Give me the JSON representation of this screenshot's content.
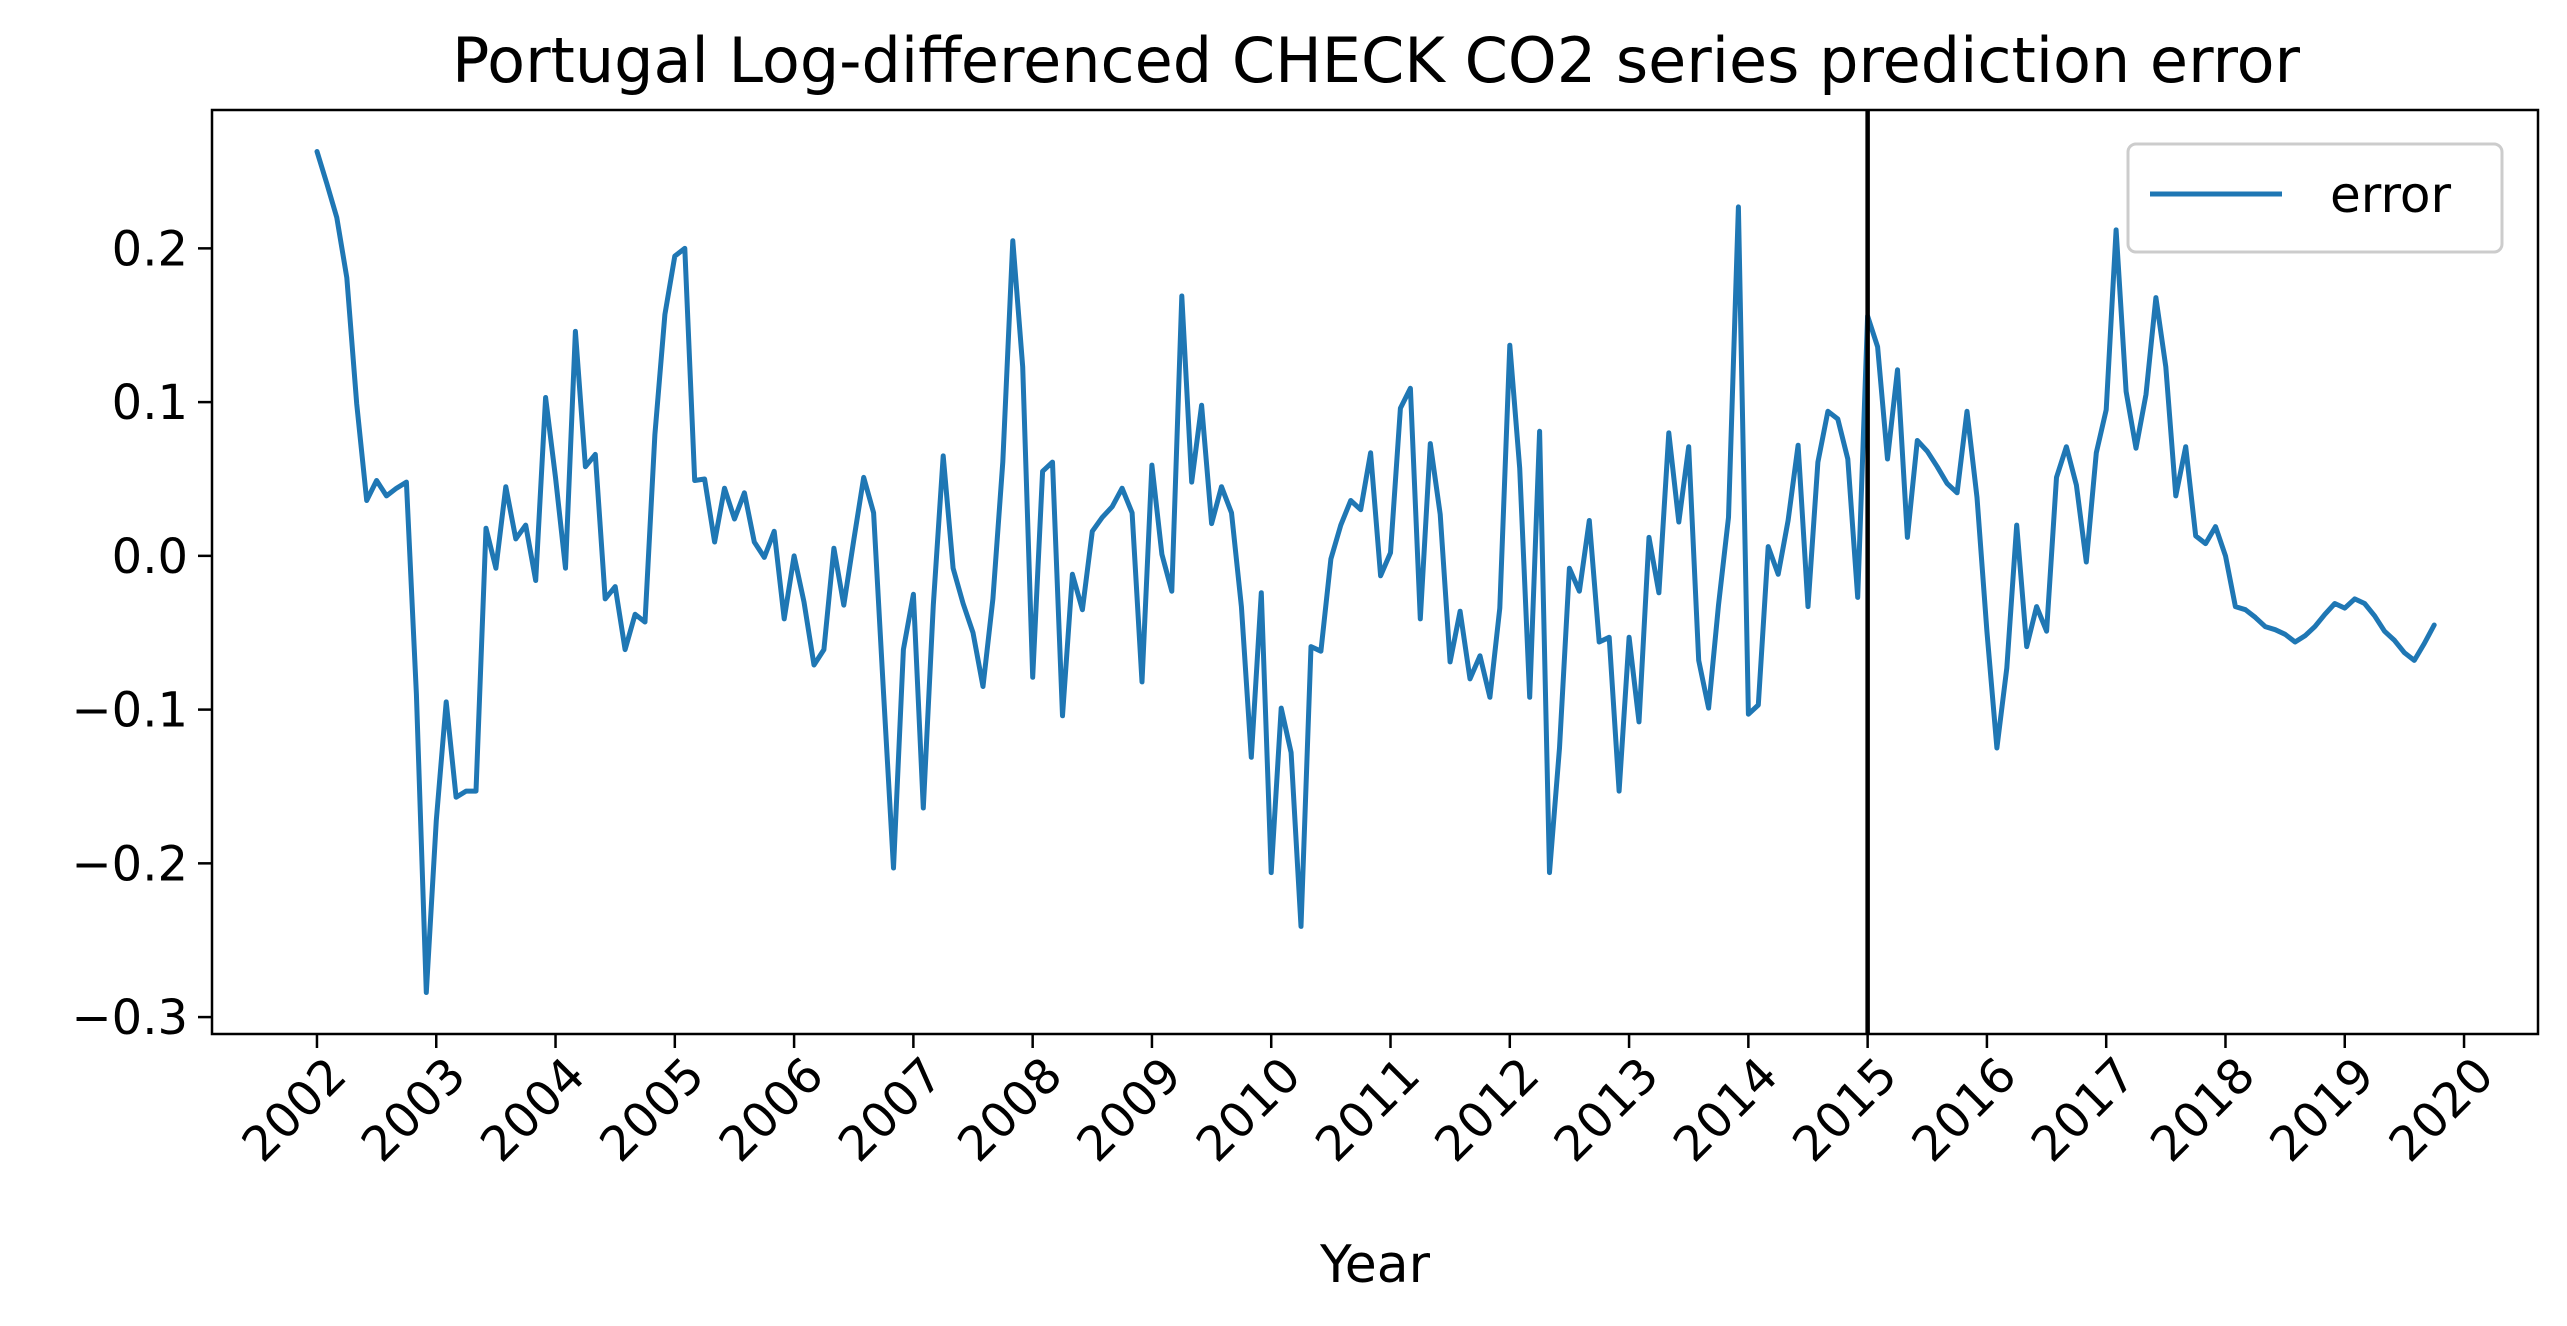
{
  "chart_data": {
    "type": "line",
    "title": "Portugal Log-differenced CHECK CO2 series prediction error",
    "xlabel": "Year",
    "ylabel": "",
    "x_ticks": [
      "2002",
      "2003",
      "2004",
      "2005",
      "2006",
      "2007",
      "2008",
      "2009",
      "2010",
      "2011",
      "2012",
      "2013",
      "2014",
      "2015",
      "2016",
      "2017",
      "2018",
      "2019",
      "2020"
    ],
    "y_ticks": [
      "0.2",
      "0.1",
      "0.0",
      "−0.1",
      "−0.2",
      "−0.3"
    ],
    "y_tick_values": [
      0.2,
      0.1,
      0.0,
      -0.1,
      -0.2,
      -0.3
    ],
    "xlim": [
      2001.12,
      2020.62
    ],
    "ylim": [
      -0.311,
      0.29
    ],
    "vline_x": 2015.0,
    "vline_color": "#000000",
    "grid": false,
    "legend_position": "top-right",
    "series": [
      {
        "name": "error",
        "color": "#1f77b4",
        "x_start": 2002.0,
        "x_step": 0.0833333,
        "values": [
          0.263,
          0.242,
          0.22,
          0.181,
          0.099,
          0.036,
          0.049,
          0.039,
          0.044,
          0.048,
          -0.09,
          -0.284,
          -0.172,
          -0.095,
          -0.157,
          -0.153,
          -0.153,
          0.018,
          -0.008,
          0.045,
          0.011,
          0.02,
          -0.016,
          0.103,
          0.051,
          -0.008,
          0.146,
          0.058,
          0.066,
          -0.028,
          -0.02,
          -0.061,
          -0.038,
          -0.043,
          0.079,
          0.157,
          0.195,
          0.2,
          0.049,
          0.05,
          0.009,
          0.044,
          0.024,
          0.041,
          0.009,
          -0.001,
          0.016,
          -0.041,
          0.0,
          -0.03,
          -0.071,
          -0.061,
          0.005,
          -0.032,
          0.01,
          0.051,
          0.028,
          -0.09,
          -0.203,
          -0.061,
          -0.025,
          -0.164,
          -0.032,
          0.065,
          -0.008,
          -0.031,
          -0.05,
          -0.085,
          -0.028,
          0.061,
          0.205,
          0.123,
          -0.079,
          0.055,
          0.061,
          -0.104,
          -0.012,
          -0.035,
          0.016,
          0.025,
          0.032,
          0.044,
          0.028,
          -0.082,
          0.059,
          0.001,
          -0.023,
          0.169,
          0.048,
          0.098,
          0.021,
          0.045,
          0.028,
          -0.033,
          -0.131,
          -0.024,
          -0.206,
          -0.099,
          -0.128,
          -0.241,
          -0.059,
          -0.062,
          -0.002,
          0.02,
          0.036,
          0.03,
          0.067,
          -0.013,
          0.002,
          0.096,
          0.109,
          -0.041,
          0.073,
          0.027,
          -0.069,
          -0.036,
          -0.08,
          -0.065,
          -0.092,
          -0.034,
          0.137,
          0.057,
          -0.092,
          0.081,
          -0.206,
          -0.125,
          -0.008,
          -0.023,
          0.023,
          -0.056,
          -0.053,
          -0.153,
          -0.053,
          -0.108,
          0.012,
          -0.024,
          0.08,
          0.022,
          0.071,
          -0.068,
          -0.099,
          -0.032,
          0.025,
          0.227,
          -0.103,
          -0.097,
          0.006,
          -0.012,
          0.023,
          0.072,
          -0.033,
          0.061,
          0.094,
          0.089,
          0.063,
          -0.027,
          0.156,
          0.136,
          0.063,
          0.121,
          0.012,
          0.075,
          0.068,
          0.058,
          0.047,
          0.041,
          0.094,
          0.038,
          -0.049,
          -0.125,
          -0.073,
          0.02,
          -0.059,
          -0.033,
          -0.049,
          0.051,
          0.071,
          0.046,
          -0.004,
          0.067,
          0.095,
          0.212,
          0.107,
          0.07,
          0.105,
          0.168,
          0.123,
          0.039,
          0.071,
          0.013,
          0.008,
          0.019,
          0.0,
          -0.033,
          -0.035,
          -0.04,
          -0.046,
          -0.048,
          -0.051,
          -0.056,
          -0.052,
          -0.046,
          -0.038,
          -0.031,
          -0.034,
          -0.028,
          -0.031,
          -0.039,
          -0.049,
          -0.055,
          -0.063,
          -0.068,
          -0.057,
          -0.045
        ]
      }
    ]
  }
}
